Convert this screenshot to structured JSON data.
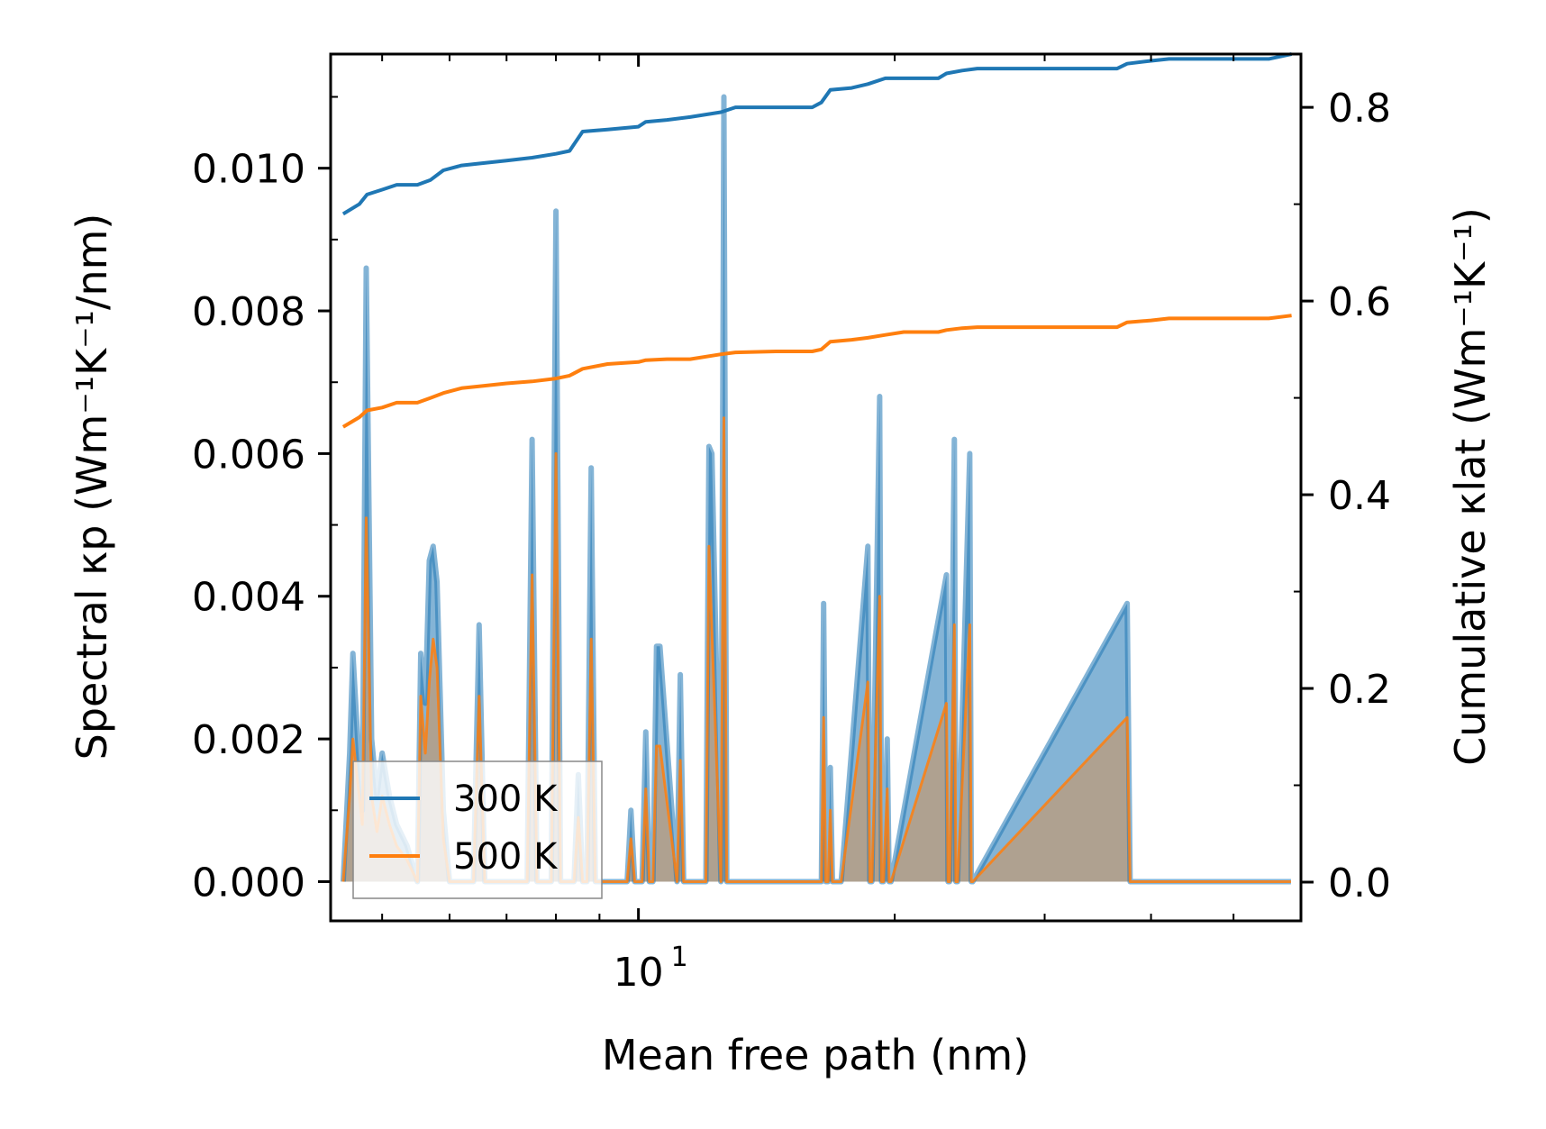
{
  "chart_data": {
    "type": "line",
    "xscale": "log",
    "xlabel": "Mean free path (nm)",
    "ylabel_left": "Spectral κp (Wm⁻¹K⁻¹/nm)",
    "ylabel_right": "Cumulative κlat (Wm⁻¹K⁻¹)",
    "xlim": [
      4.35,
      60
    ],
    "ylim_left": [
      -0.00055,
      0.0116
    ],
    "ylim_right": [
      -0.04,
      0.855
    ],
    "x_tick_labels": [
      {
        "value": 10,
        "label": "10"
      }
    ],
    "y_left_ticks": [
      {
        "value": 0.0,
        "label": "0.000"
      },
      {
        "value": 0.002,
        "label": "0.002"
      },
      {
        "value": 0.004,
        "label": "0.004"
      },
      {
        "value": 0.006,
        "label": "0.006"
      },
      {
        "value": 0.008,
        "label": "0.008"
      },
      {
        "value": 0.01,
        "label": "0.010"
      }
    ],
    "y_right_ticks": [
      {
        "value": 0.0,
        "label": "0.0"
      },
      {
        "value": 0.2,
        "label": "0.2"
      },
      {
        "value": 0.4,
        "label": "0.4"
      },
      {
        "value": 0.6,
        "label": "0.6"
      },
      {
        "value": 0.8,
        "label": "0.8"
      }
    ],
    "legend": {
      "position": "lower-left",
      "entries": [
        {
          "name": "300 K",
          "color": "#1f77b4"
        },
        {
          "name": "500 K",
          "color": "#ff7f0e"
        }
      ]
    },
    "series": [
      {
        "name": "300 K",
        "color": "#1f77b4",
        "spectral": {
          "x": [
            4.5,
            4.58,
            4.62,
            4.68,
            4.74,
            4.79,
            4.86,
            4.93,
            5.0,
            5.1,
            5.2,
            5.35,
            5.5,
            5.55,
            5.62,
            5.68,
            5.74,
            5.8,
            5.9,
            6.0,
            6.4,
            6.5,
            6.6,
            6.8,
            7.4,
            7.5,
            7.6,
            7.9,
            8.0,
            8.1,
            8.4,
            8.5,
            8.6,
            8.7,
            8.8,
            8.9,
            9.7,
            9.8,
            9.9,
            10.1,
            10.2,
            10.3,
            10.4,
            10.5,
            10.6,
            11.1,
            11.2,
            11.3,
            12.0,
            12.1,
            12.2,
            12.5,
            12.6,
            12.7,
            16.4,
            16.5,
            16.6,
            16.7,
            16.8,
            16.9,
            17.3,
            18.6,
            18.7,
            18.8,
            19.2,
            19.3,
            19.4,
            19.6,
            19.7,
            19.8,
            23.0,
            23.1,
            23.2,
            23.5,
            23.6,
            23.7,
            24.5,
            24.6,
            24.7,
            37.5,
            37.8,
            38.1,
            40.0,
            40.3,
            40.6,
            58.0,
            58.4
          ]
        },
        "cumulative": {
          "x": [
            4.5,
            4.7,
            4.8,
            5.0,
            5.2,
            5.5,
            5.7,
            5.9,
            6.2,
            6.5,
            7.0,
            7.5,
            8.0,
            8.3,
            8.6,
            9.2,
            10.0,
            10.2,
            10.8,
            11.5,
            12.5,
            13.0,
            14.5,
            16.0,
            16.4,
            16.8,
            17.8,
            18.6,
            19.5,
            20.5,
            22.5,
            23.0,
            24.0,
            25.0,
            36.5,
            37.5,
            40.0,
            42.0,
            55.0,
            58.5
          ],
          "y": [
            0.69,
            0.7,
            0.71,
            0.715,
            0.72,
            0.72,
            0.725,
            0.735,
            0.74,
            0.742,
            0.745,
            0.748,
            0.752,
            0.755,
            0.775,
            0.777,
            0.78,
            0.785,
            0.787,
            0.79,
            0.795,
            0.8,
            0.8,
            0.8,
            0.805,
            0.818,
            0.82,
            0.824,
            0.83,
            0.83,
            0.83,
            0.835,
            0.838,
            0.84,
            0.84,
            0.845,
            0.848,
            0.85,
            0.85,
            0.855
          ]
        }
      },
      {
        "name": "500 K",
        "color": "#ff7f0e",
        "spectral": {
          "x": [
            4.5,
            4.58,
            4.62,
            4.68,
            4.74,
            4.79,
            4.86,
            4.93,
            5.0,
            5.1,
            5.2,
            5.35,
            5.5,
            5.55,
            5.62,
            5.68,
            5.74,
            5.8,
            5.9,
            6.0,
            6.4,
            6.5,
            6.6,
            6.8,
            7.4,
            7.5,
            7.6,
            7.9,
            8.0,
            8.1,
            8.4,
            8.5,
            8.6,
            8.7,
            8.8,
            8.9,
            9.7,
            9.8,
            9.9,
            10.1,
            10.2,
            10.3,
            10.4,
            10.5,
            10.6,
            11.1,
            11.2,
            11.3,
            12.0,
            12.1,
            12.2,
            12.5,
            12.6,
            12.7,
            16.4,
            16.5,
            16.6,
            16.7,
            16.8,
            16.9,
            17.3,
            18.6,
            18.7,
            18.8,
            19.2,
            19.3,
            19.4,
            19.6,
            19.7,
            19.8,
            23.0,
            23.1,
            23.2,
            23.5,
            23.6,
            23.7,
            24.5,
            24.6,
            24.7,
            37.5,
            37.8,
            38.1,
            40.0,
            40.3,
            40.6,
            58.0,
            58.4
          ]
        },
        "cumulative": {
          "x": [
            4.5,
            4.7,
            4.8,
            5.0,
            5.2,
            5.5,
            5.7,
            5.9,
            6.2,
            6.5,
            7.0,
            7.5,
            8.0,
            8.3,
            8.6,
            9.2,
            10.0,
            10.2,
            10.8,
            11.5,
            12.5,
            13.0,
            14.5,
            16.0,
            16.4,
            16.8,
            17.8,
            18.6,
            19.5,
            20.5,
            22.5,
            23.0,
            24.0,
            25.0,
            36.5,
            37.5,
            40.0,
            42.0,
            55.0,
            58.5
          ],
          "y": [
            0.47,
            0.48,
            0.487,
            0.49,
            0.495,
            0.495,
            0.5,
            0.505,
            0.51,
            0.512,
            0.515,
            0.517,
            0.52,
            0.523,
            0.53,
            0.535,
            0.537,
            0.539,
            0.54,
            0.54,
            0.545,
            0.547,
            0.548,
            0.548,
            0.55,
            0.558,
            0.56,
            0.562,
            0.565,
            0.568,
            0.568,
            0.57,
            0.572,
            0.573,
            0.573,
            0.578,
            0.58,
            0.582,
            0.582,
            0.585
          ]
        }
      }
    ]
  }
}
